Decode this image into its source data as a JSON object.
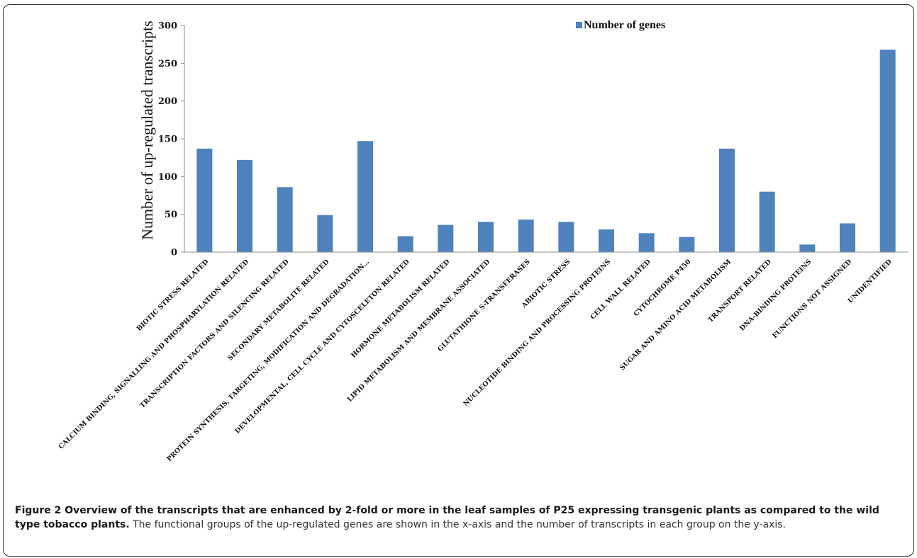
{
  "chart_data": {
    "type": "bar",
    "categories": [
      "BIOTIC STRESS RELATED",
      "CALCIUM BINDING, SIGNALLING AND PHOSPHARYLATION RELATED",
      "TRANSCRIPTION FACTORS AND SILENCING RELATED",
      "SECONDARY METABOLITE RELATED",
      "PROTEIN SYNTHESIS, TARGETING, MODIFICATION AND DEGRADATION...",
      "DEVELOPMENTAL, CELL CYCLE AND CYTOSCELETON RELATED",
      "HORMONE METABOLISM RELATED",
      "LIPID METABOLISM AND MEMBRANE ASSOCIATED",
      "GLUTATHIONE S-TRANSFERASES",
      "ABIOTIC STRESS",
      "NUCLEOTIDE BINDING AND PROCESSING PROTEINS",
      "CELL WALL RELATED",
      "CYTOCHROME P450",
      "SUGAR AND AMINO ACID METABOLISM",
      "TRANSPORT RELATED",
      "DNA-BINDING PROTEINS",
      "FUNCTIONS NOT ASSIGNED",
      "UNIDENTIFIED"
    ],
    "series": [
      {
        "name": "Number of genes",
        "values": [
          137,
          122,
          86,
          49,
          147,
          21,
          36,
          40,
          43,
          40,
          30,
          25,
          20,
          137,
          80,
          10,
          38,
          268
        ]
      }
    ],
    "ylabel": "Number of up-regulated transcripts",
    "xlabel": "",
    "ylim": [
      0,
      300
    ],
    "yticks": [
      0,
      50,
      100,
      150,
      200,
      250,
      300
    ],
    "legend": "top-right",
    "grid": false,
    "bar_color": "#4f81bd"
  },
  "caption": {
    "bold": "Figure 2 Overview of the transcripts that are enhanced by 2-fold or more in the leaf samples of P25 expressing transgenic plants as compared to the wild type tobacco plants.",
    "text": " The functional groups of the up-regulated genes are shown in the x-axis and the number of transcripts in each group on the y-axis."
  }
}
